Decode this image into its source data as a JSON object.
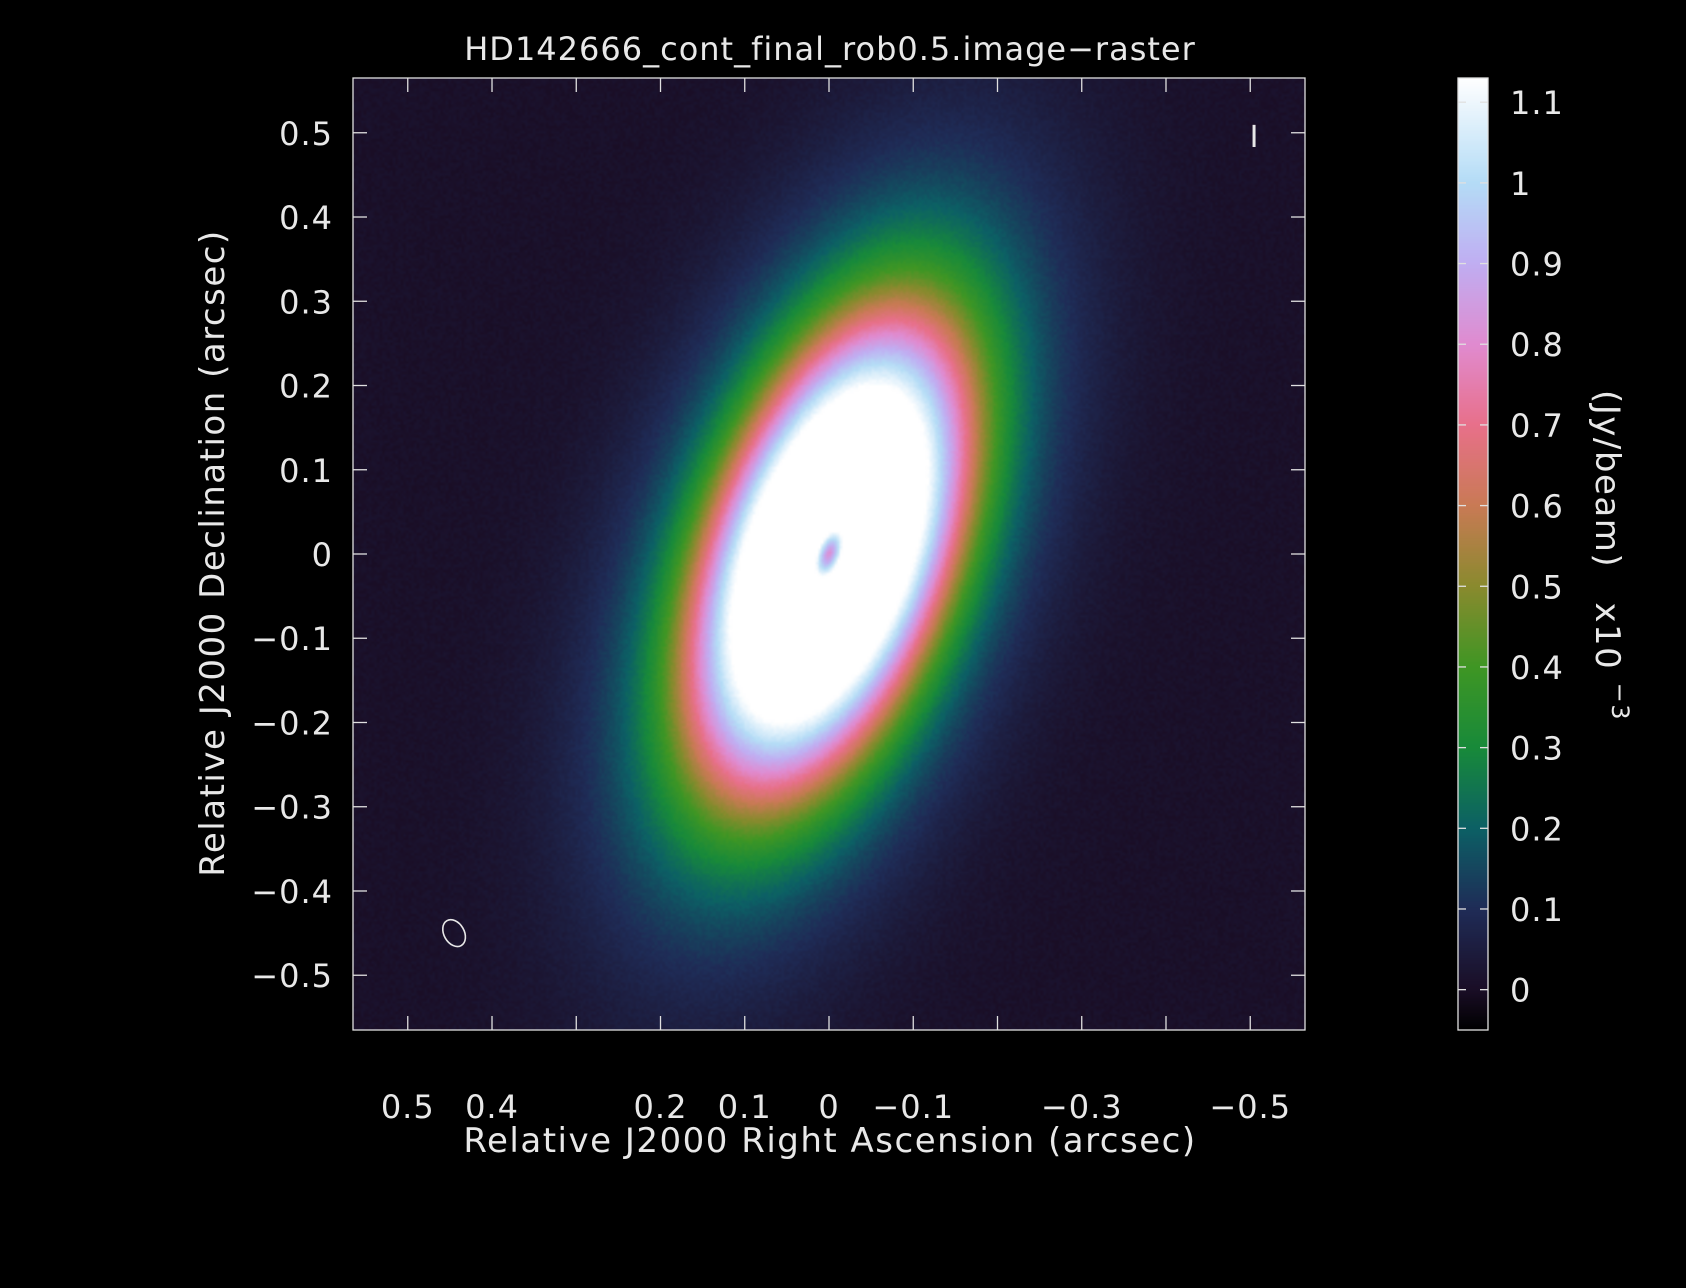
{
  "chart_data": {
    "type": "heatmap",
    "title": "HD142666_cont_final_rob0.5.image−raster",
    "xlabel": "Relative J2000 Right Ascension (arcsec)",
    "ylabel": "Relative J2000 Declination (arcsec)",
    "xlim": [
      0.565,
      -0.565
    ],
    "ylim": [
      -0.565,
      0.565
    ],
    "x_ticks": [
      {
        "v": 0.5,
        "label": "0.5"
      },
      {
        "v": 0.4,
        "label": "0.4"
      },
      {
        "v": 0.3,
        "label": ""
      },
      {
        "v": 0.2,
        "label": "0.2"
      },
      {
        "v": 0.1,
        "label": "0.1"
      },
      {
        "v": 0.0,
        "label": "0"
      },
      {
        "v": -0.1,
        "label": "−0.1"
      },
      {
        "v": -0.2,
        "label": ""
      },
      {
        "v": -0.3,
        "label": "−0.3"
      },
      {
        "v": -0.4,
        "label": ""
      },
      {
        "v": -0.5,
        "label": "−0.5"
      }
    ],
    "y_ticks": [
      {
        "v": 0.5,
        "label": "0.5"
      },
      {
        "v": 0.4,
        "label": "0.4"
      },
      {
        "v": 0.3,
        "label": "0.3"
      },
      {
        "v": 0.2,
        "label": "0.2"
      },
      {
        "v": 0.1,
        "label": "0.1"
      },
      {
        "v": 0.0,
        "label": "0"
      },
      {
        "v": -0.1,
        "label": "−0.1"
      },
      {
        "v": -0.2,
        "label": "−0.2"
      },
      {
        "v": -0.3,
        "label": "−0.3"
      },
      {
        "v": -0.4,
        "label": "−0.4"
      },
      {
        "v": -0.5,
        "label": "−0.5"
      }
    ],
    "colorbar": {
      "label": "(Jy/beam)",
      "multiplier_base": "x10",
      "multiplier_exp": "−3",
      "range": [
        -0.05,
        1.13
      ],
      "ticks": [
        {
          "v": 0.0,
          "label": "0"
        },
        {
          "v": 0.1,
          "label": "0.1"
        },
        {
          "v": 0.2,
          "label": "0.2"
        },
        {
          "v": 0.3,
          "label": "0.3"
        },
        {
          "v": 0.4,
          "label": "0.4"
        },
        {
          "v": 0.5,
          "label": "0.5"
        },
        {
          "v": 0.6,
          "label": "0.6"
        },
        {
          "v": 0.7,
          "label": "0.7"
        },
        {
          "v": 0.8,
          "label": "0.8"
        },
        {
          "v": 0.9,
          "label": "0.9"
        },
        {
          "v": 1.0,
          "label": "1"
        },
        {
          "v": 1.1,
          "label": "1.1"
        }
      ],
      "colormap": [
        {
          "v": -0.05,
          "color": "#000000"
        },
        {
          "v": 0.0,
          "color": "#1a0e26"
        },
        {
          "v": 0.1,
          "color": "#1f2c57"
        },
        {
          "v": 0.2,
          "color": "#0c6065"
        },
        {
          "v": 0.3,
          "color": "#188a3a"
        },
        {
          "v": 0.4,
          "color": "#3f9624"
        },
        {
          "v": 0.5,
          "color": "#8a8a2e"
        },
        {
          "v": 0.6,
          "color": "#c97a55"
        },
        {
          "v": 0.7,
          "color": "#e8708a"
        },
        {
          "v": 0.8,
          "color": "#e08bd0"
        },
        {
          "v": 0.9,
          "color": "#c0aef2"
        },
        {
          "v": 1.0,
          "color": "#b4dcf6"
        },
        {
          "v": 1.13,
          "color": "#ffffff"
        }
      ]
    },
    "image_model": {
      "center": [
        0.0,
        0.0
      ],
      "position_angle_deg": 160,
      "inclination_deg": 62,
      "background": 0.008,
      "components": [
        {
          "kind": "gauss",
          "amp": 0.78,
          "sigma": 0.25
        },
        {
          "kind": "ring",
          "amp": 0.62,
          "r": 0.17,
          "width": 0.1
        },
        {
          "kind": "ring",
          "amp": 0.4,
          "r": 0.05,
          "width": 0.05
        },
        {
          "kind": "hole",
          "amp": 0.75,
          "r": 0.0,
          "width": 0.03
        },
        {
          "kind": "gap",
          "amp": 0.12,
          "r": 0.11,
          "width": 0.025
        }
      ]
    },
    "beam": {
      "center": [
        0.445,
        -0.45
      ],
      "major": 0.034,
      "minor": 0.024,
      "pa_deg": 60
    },
    "stokes_label": "I"
  }
}
